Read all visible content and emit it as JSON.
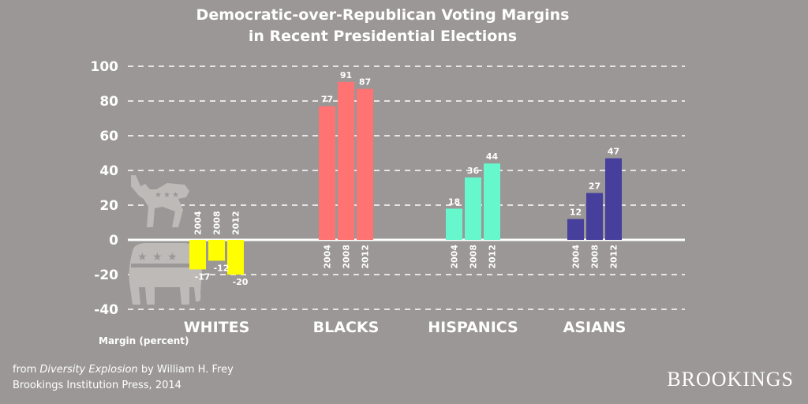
{
  "chart_data": {
    "type": "bar",
    "title_lines": [
      "Democratic-over-Republican Voting Margins",
      "in Recent Presidential Elections"
    ],
    "ylabel": "Margin (percent)",
    "ylim": [
      -40,
      100
    ],
    "yticks": [
      100,
      80,
      60,
      40,
      20,
      0,
      -20,
      -40
    ],
    "grid": true,
    "years": [
      "2004",
      "2008",
      "2012"
    ],
    "groups": [
      {
        "name": "WHITES",
        "color": "#ffff00",
        "values": [
          -17,
          -12,
          -20
        ]
      },
      {
        "name": "BLACKS",
        "color": "#ff7373",
        "values": [
          77,
          91,
          87
        ]
      },
      {
        "name": "HISPANICS",
        "color": "#66f7cc",
        "values": [
          18,
          36,
          44
        ]
      },
      {
        "name": "ASIANS",
        "color": "#463f9c",
        "values": [
          12,
          27,
          47
        ]
      }
    ]
  },
  "source": {
    "prefix": "from",
    "book": "Diversity Explosion",
    "author": "by William H. Frey",
    "line2": "Brookings Institution Press, 2014"
  },
  "brand": "BROOKINGS",
  "icons": [
    "donkey-icon",
    "elephant-icon"
  ]
}
